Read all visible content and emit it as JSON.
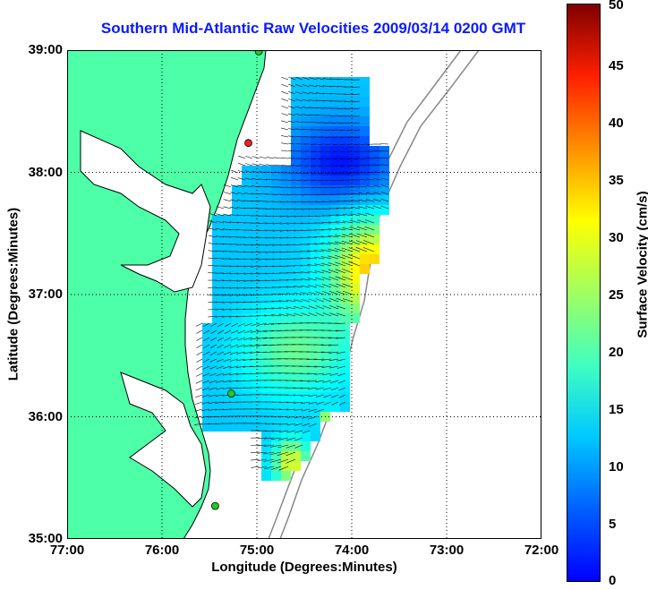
{
  "title": "Southern Mid-Atlantic Raw Velocities 2009/03/14 0200 GMT",
  "axes": {
    "xlabel": "Longitude (Degrees:Minutes)",
    "ylabel": "Latitude (Degrees:Minutes)",
    "lon_ticks": [
      "77:00",
      "76:00",
      "75:00",
      "74:00",
      "73:00",
      "72:00"
    ],
    "lat_ticks": [
      "39:00",
      "38:00",
      "37:00",
      "36:00",
      "35:00"
    ],
    "lon_range": [
      -77,
      -72
    ],
    "lat_range": [
      35,
      39
    ],
    "grid": "dotted"
  },
  "colorbar": {
    "label": "Surface Velocity (cm/s)",
    "ticks": [
      "0",
      "5",
      "10",
      "15",
      "20",
      "25",
      "30",
      "35",
      "40",
      "45",
      "50"
    ],
    "range": [
      0,
      50
    ],
    "colormap": "jet"
  },
  "colors": {
    "title": "#0a1aff",
    "land": "#4dffa6",
    "sea": "#ffffff",
    "coastline": "#000000",
    "bathymetry": "#888888",
    "vector": "#000000",
    "station": "#22cc22",
    "station_active": "#ee2222"
  },
  "stations": [
    {
      "lon": -74.98,
      "lat": 38.99,
      "status": "green"
    },
    {
      "lon": -75.09,
      "lat": 38.24,
      "status": "red"
    },
    {
      "lon": -75.27,
      "lat": 36.19,
      "status": "green"
    },
    {
      "lon": -75.44,
      "lat": 35.27,
      "status": "green"
    }
  ]
}
